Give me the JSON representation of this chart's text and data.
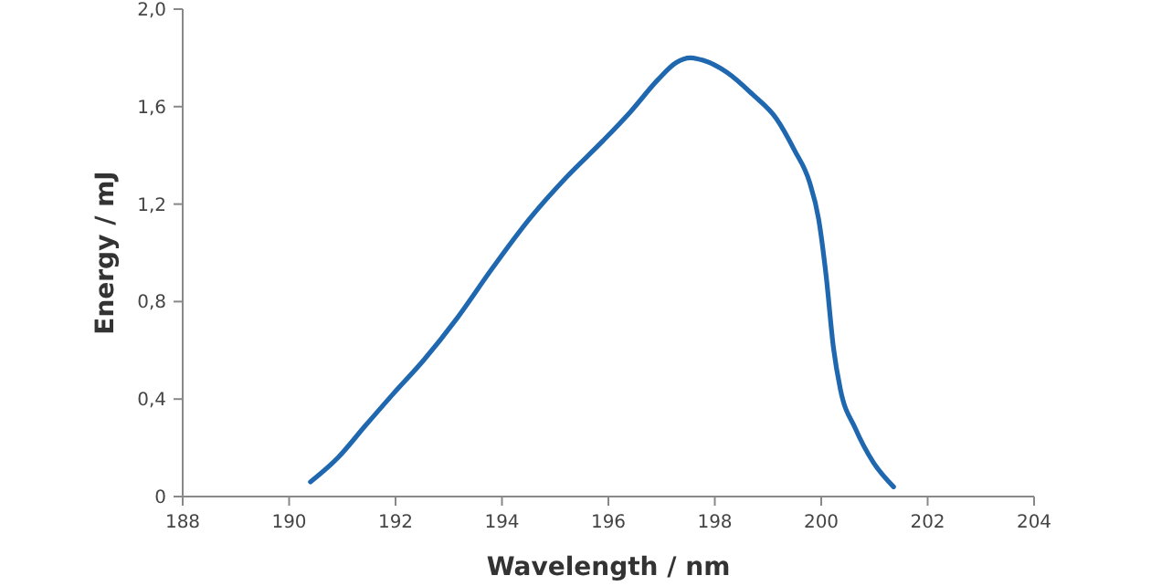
{
  "chart_data": {
    "type": "line",
    "xlabel": "Wavelength / nm",
    "ylabel": "Energy / mJ",
    "xlim": [
      188,
      204
    ],
    "xticks": [
      188,
      190,
      192,
      194,
      196,
      198,
      200,
      202,
      204
    ],
    "ylim": [
      0,
      2
    ],
    "yticks": [
      0,
      {
        "value": 0.4,
        "label": "0,4"
      },
      {
        "value": 0.8,
        "label": "0,8"
      },
      {
        "value": 1.2,
        "label": "1,2"
      },
      {
        "value": 1.6,
        "label": "1,6"
      },
      {
        "value": 2,
        "label": "2,0"
      }
    ],
    "grid": false,
    "marker": "none",
    "line_style": "solid",
    "series": [
      {
        "color": "#1f68b0",
        "x": [
          190.4,
          190.92,
          191.43,
          191.95,
          192.53,
          193.15,
          193.83,
          194.52,
          195.21,
          195.9,
          196.42,
          196.93,
          197.27,
          197.54,
          197.78,
          198.23,
          198.71,
          199.16,
          199.5,
          199.78,
          199.95,
          200.09,
          200.23,
          200.36,
          200.64,
          200.98,
          201.36
        ],
        "values": [
          0.06,
          0.16,
          0.29,
          0.42,
          0.56,
          0.73,
          0.94,
          1.14,
          1.31,
          1.46,
          1.58,
          1.71,
          1.78,
          1.8,
          1.79,
          1.74,
          1.65,
          1.55,
          1.42,
          1.29,
          1.14,
          0.91,
          0.61,
          0.44,
          0.28,
          0.14,
          0.04
        ]
      }
    ]
  }
}
